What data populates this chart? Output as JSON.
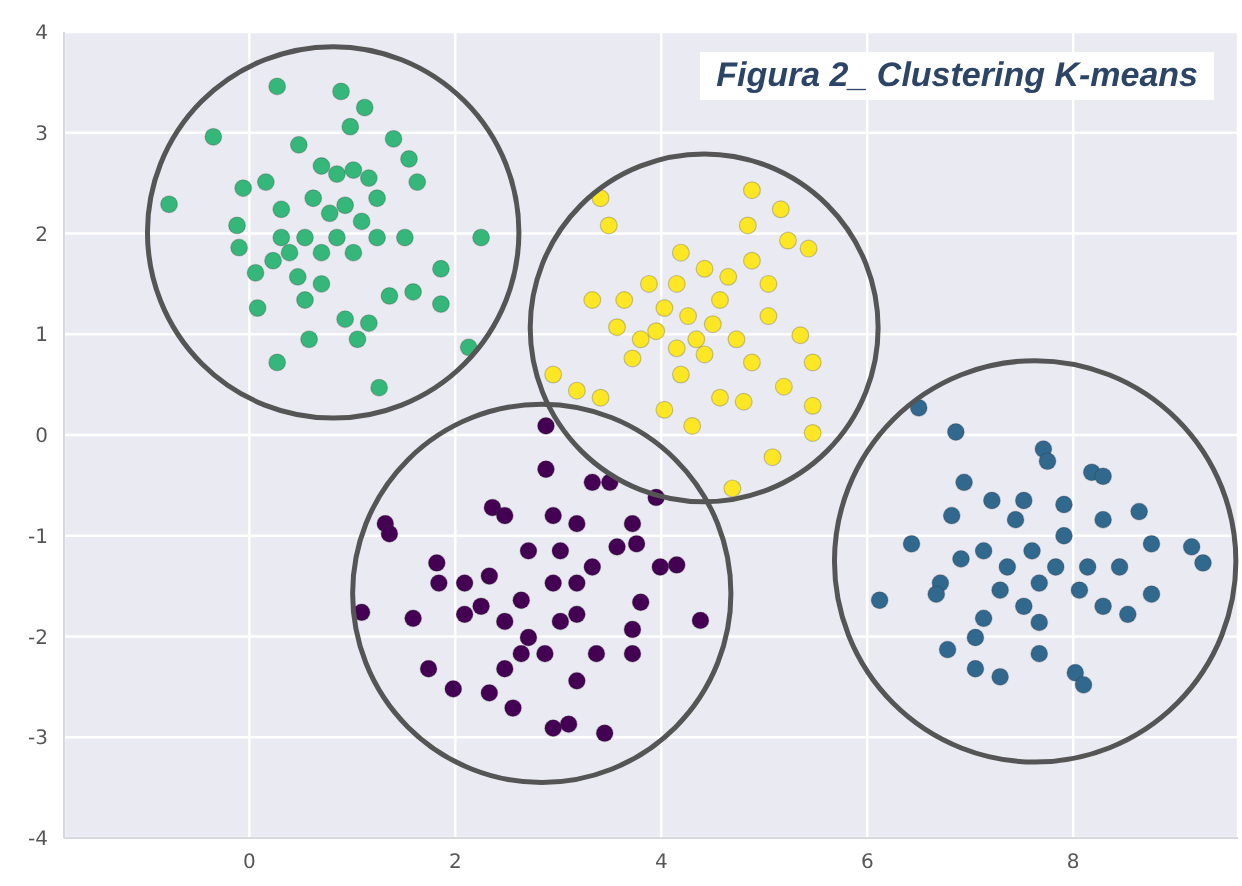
{
  "chart_data": {
    "type": "scatter",
    "title": "Figura 2_ Clustering K-means",
    "xlim": [
      -1.8,
      9.6
    ],
    "xticks": [
      0,
      2,
      4,
      6,
      8
    ],
    "ylim": [
      -4,
      4
    ],
    "yticks": [
      -4,
      -3,
      -2,
      -1,
      0,
      1,
      2,
      3,
      4
    ],
    "grid": true,
    "legend": false,
    "marker": "circle",
    "series": [
      {
        "color": "#35b779",
        "x": [
          -0.78,
          -0.35,
          0.27,
          0.89,
          1.12,
          0.98,
          0.48,
          1.4,
          1.55,
          1.63,
          -0.06,
          0.16,
          -0.12,
          0.31,
          -0.1,
          0.06,
          0.08,
          0.27,
          0.58,
          0.93,
          1.16,
          1.05,
          1.26,
          2.13,
          2.25,
          1.86,
          1.86,
          1.59,
          1.36,
          1.51,
          1.24,
          0.7,
          0.85,
          1.01,
          1.16,
          0.62,
          0.78,
          0.93,
          1.09,
          0.54,
          0.7,
          0.85,
          0.39,
          0.47,
          0.7,
          0.54,
          0.23,
          1.24,
          0.31,
          1.01
        ],
        "values": [
          2.29,
          2.96,
          3.46,
          3.41,
          3.25,
          3.06,
          2.88,
          2.94,
          2.74,
          2.51,
          2.45,
          2.51,
          2.08,
          2.24,
          1.86,
          1.61,
          1.26,
          0.72,
          0.95,
          1.15,
          1.11,
          0.95,
          0.47,
          0.87,
          1.96,
          1.65,
          1.3,
          1.42,
          1.38,
          1.96,
          1.96,
          2.67,
          2.59,
          2.63,
          2.55,
          2.35,
          2.2,
          2.28,
          2.12,
          1.96,
          1.81,
          1.96,
          1.81,
          1.57,
          1.5,
          1.34,
          1.73,
          2.35,
          1.96,
          1.81
        ]
      },
      {
        "color": "#fde725",
        "x": [
          3.41,
          3.49,
          4.88,
          5.16,
          5.23,
          5.43,
          4.84,
          4.19,
          3.33,
          3.57,
          3.88,
          2.95,
          3.18,
          3.41,
          3.72,
          4.03,
          4.3,
          4.57,
          4.69,
          5.08,
          5.47,
          5.47,
          5.47,
          5.35,
          5.04,
          4.73,
          4.42,
          4.19,
          3.95,
          4.26,
          4.57,
          4.42,
          4.65,
          4.03,
          3.8,
          4.34,
          4.88,
          5.19,
          4.8,
          5.04,
          4.15,
          4.88,
          3.64,
          4.5,
          4.15
        ],
        "values": [
          2.35,
          2.08,
          2.43,
          2.24,
          1.93,
          1.85,
          2.08,
          1.81,
          1.34,
          1.07,
          1.5,
          0.6,
          0.44,
          0.37,
          0.76,
          0.25,
          0.09,
          0.37,
          -0.53,
          -0.22,
          0.02,
          0.29,
          0.72,
          0.99,
          1.18,
          0.95,
          0.8,
          0.6,
          1.03,
          1.18,
          1.34,
          1.65,
          1.57,
          1.26,
          0.95,
          0.95,
          0.72,
          0.48,
          0.33,
          1.5,
          1.5,
          1.73,
          1.34,
          1.1,
          0.86
        ]
      },
      {
        "color": "#440154",
        "x": [
          2.88,
          2.88,
          3.33,
          3.5,
          3.95,
          1.32,
          1.36,
          1.09,
          1.59,
          1.82,
          1.84,
          2.36,
          2.48,
          2.95,
          3.18,
          3.72,
          3.76,
          3.57,
          2.71,
          3.02,
          3.33,
          3.99,
          4.15,
          3.8,
          4.38,
          3.72,
          3.72,
          3.37,
          3.18,
          2.48,
          2.33,
          2.56,
          2.95,
          3.1,
          3.45,
          1.98,
          1.74,
          2.09,
          2.25,
          2.48,
          2.71,
          2.87,
          3.02,
          2.64,
          2.95,
          3.18,
          2.33,
          2.09,
          2.64,
          3.18
        ],
        "values": [
          0.09,
          -0.34,
          -0.47,
          -0.47,
          -0.62,
          -0.88,
          -0.98,
          -1.76,
          -1.82,
          -1.27,
          -1.47,
          -0.72,
          -0.8,
          -0.8,
          -0.88,
          -0.88,
          -1.08,
          -1.11,
          -1.15,
          -1.15,
          -1.31,
          -1.31,
          -1.29,
          -1.66,
          -1.84,
          -1.93,
          -2.17,
          -2.17,
          -2.44,
          -2.32,
          -2.56,
          -2.71,
          -2.91,
          -2.87,
          -2.96,
          -2.52,
          -2.32,
          -1.78,
          -1.7,
          -1.85,
          -2.01,
          -2.17,
          -1.85,
          -1.64,
          -1.47,
          -1.47,
          -1.4,
          -1.47,
          -2.17,
          -1.78
        ]
      },
      {
        "color": "#31688e",
        "x": [
          6.5,
          6.86,
          7.71,
          7.75,
          8.18,
          8.29,
          6.94,
          6.43,
          6.12,
          6.82,
          7.21,
          7.52,
          7.91,
          8.29,
          8.64,
          8.76,
          9.15,
          9.26,
          8.76,
          8.53,
          8.29,
          8.06,
          7.83,
          7.6,
          7.36,
          7.13,
          6.91,
          6.71,
          6.67,
          7.29,
          7.52,
          7.67,
          7.13,
          7.05,
          6.78,
          7.05,
          7.29,
          7.67,
          8.02,
          8.1,
          7.91,
          8.14,
          8.45,
          7.44,
          7.67
        ],
        "values": [
          0.27,
          0.03,
          -0.14,
          -0.26,
          -0.37,
          -0.41,
          -0.47,
          -1.08,
          -1.64,
          -0.8,
          -0.65,
          -0.65,
          -0.69,
          -0.84,
          -0.76,
          -1.08,
          -1.11,
          -1.27,
          -1.58,
          -1.78,
          -1.7,
          -1.54,
          -1.31,
          -1.15,
          -1.31,
          -1.15,
          -1.23,
          -1.47,
          -1.58,
          -1.54,
          -1.7,
          -1.86,
          -1.82,
          -2.01,
          -2.13,
          -2.32,
          -2.4,
          -2.17,
          -2.36,
          -2.48,
          -1.0,
          -1.31,
          -1.31,
          -0.84,
          -1.47
        ]
      }
    ]
  }
}
